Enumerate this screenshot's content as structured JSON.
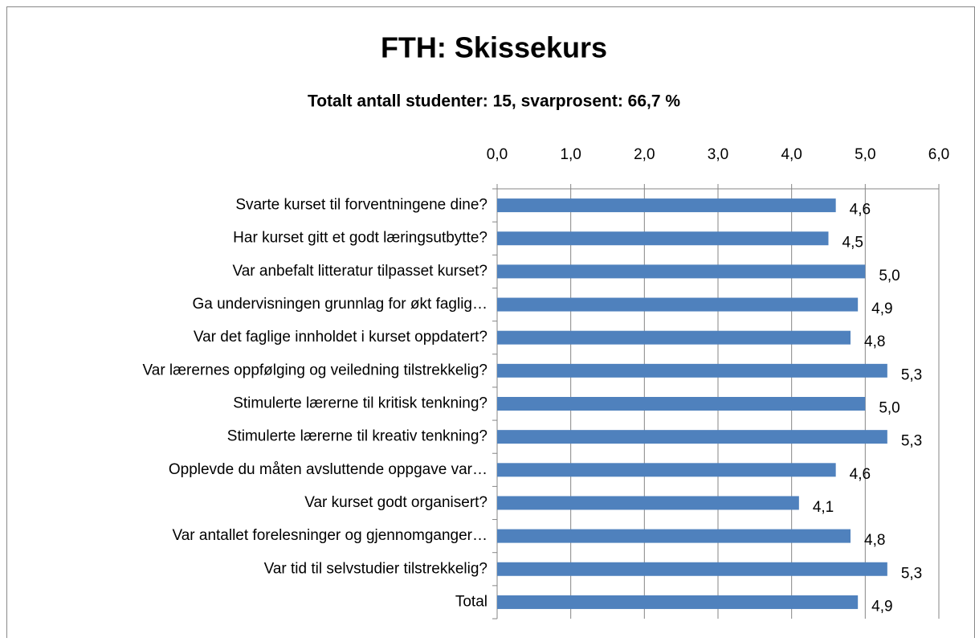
{
  "chart_data": {
    "type": "bar",
    "orientation": "horizontal",
    "title": "FTH: Skissekurs",
    "subtitle": "Totalt antall studenter: 15, svarprosent:  66,7 %",
    "categories": [
      "Svarte kurset til forventningene dine?",
      "Har kurset gitt et godt læringsutbytte?",
      "Var anbefalt litteratur tilpasset kurset?",
      "Ga undervisningen grunnlag for økt faglig…",
      "Var det faglige innholdet i kurset oppdatert?",
      "Var lærernes oppfølging og veiledning tilstrekkelig?",
      "Stimulerte lærerne til kritisk tenkning?",
      "Stimulerte lærerne til kreativ tenkning?",
      "Opplevde du måten avsluttende oppgave var…",
      "Var kurset godt organisert?",
      "Var antallet forelesninger og gjennomganger…",
      "Var tid til selvstudier tilstrekkelig?",
      "Total"
    ],
    "values": [
      4.6,
      4.5,
      5.0,
      4.9,
      4.8,
      5.3,
      5.0,
      5.3,
      4.6,
      4.1,
      4.8,
      5.3,
      4.9
    ],
    "value_labels": [
      "4,6",
      "4,5",
      "5,0",
      "4,9",
      "4,8",
      "5,3",
      "5,0",
      "5,3",
      "4,6",
      "4,1",
      "4,8",
      "5,3",
      "4,9"
    ],
    "color": "#4f81bd",
    "xlim": [
      0,
      6
    ],
    "xticks": [
      {
        "value": 0,
        "label": "0,0"
      },
      {
        "value": 1,
        "label": "1,0"
      },
      {
        "value": 2,
        "label": "2,0"
      },
      {
        "value": 3,
        "label": "3,0"
      },
      {
        "value": 4,
        "label": "4,0"
      },
      {
        "value": 5,
        "label": "5,0"
      },
      {
        "value": 6,
        "label": "6,0"
      }
    ],
    "grid": true
  }
}
